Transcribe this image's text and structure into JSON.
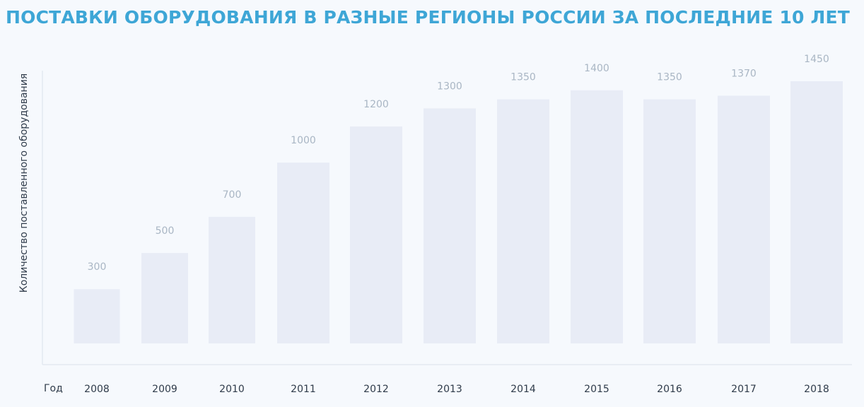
{
  "chart_data": {
    "type": "bar",
    "title": "ПОСТАВКИ ОБОРУДОВАНИЯ В РАЗНЫЕ РЕГИОНЫ РОССИИ ЗА ПОСЛЕДНИЕ 10 ЛЕТ",
    "xlabel": "Год",
    "ylabel": "Количество поставленного оборудования",
    "categories": [
      "2008",
      "2009",
      "2010",
      "2011",
      "2012",
      "2013",
      "2014",
      "2015",
      "2016",
      "2017",
      "2018"
    ],
    "values": [
      300,
      500,
      700,
      1000,
      1200,
      1300,
      1350,
      1400,
      1350,
      1370,
      1450
    ],
    "ylim": [
      0,
      1450
    ],
    "grid": false,
    "legend": "none",
    "colors": {
      "bar": "#e8ecf6",
      "value_label": "#a9b6c4",
      "title": "#3ea6d6",
      "axis": "#e3e9f2"
    }
  }
}
